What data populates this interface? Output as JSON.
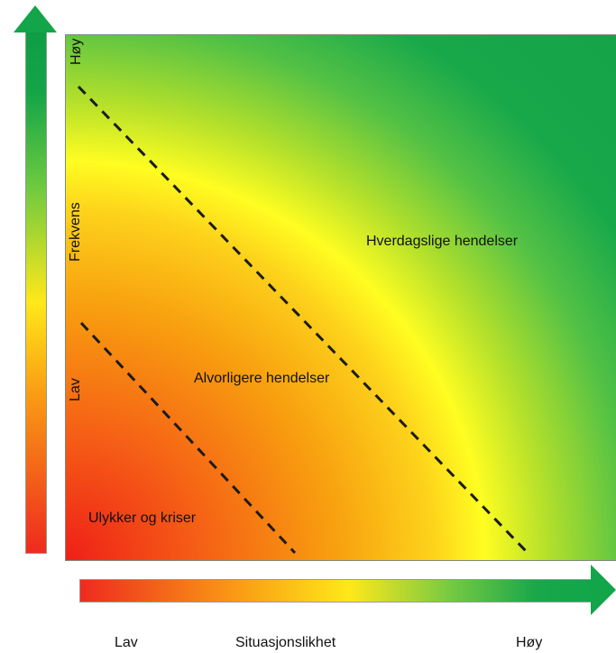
{
  "y_axis": {
    "high_label": "Høy",
    "title": "Frekvens",
    "low_label": "Lav"
  },
  "x_axis": {
    "low_label": "Lav",
    "title": "Situasjonslikhet",
    "high_label": "Høy"
  },
  "regions": {
    "everyday": "Hverdagslige hendelser",
    "serious": "Alvorligere hendelser",
    "accidents": "Ulykker og kriser"
  },
  "colors": {
    "low": "#ee2a1f",
    "mid": "#ffe81a",
    "high": "#12a54a",
    "divider": "#1b1b1b"
  }
}
